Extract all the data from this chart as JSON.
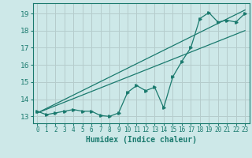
{
  "x_data": [
    0,
    1,
    2,
    3,
    4,
    5,
    6,
    7,
    8,
    9,
    10,
    11,
    12,
    13,
    14,
    15,
    16,
    17,
    18,
    19,
    20,
    21,
    22,
    23
  ],
  "y_data": [
    13.3,
    13.1,
    13.2,
    13.3,
    13.4,
    13.3,
    13.3,
    13.05,
    13.0,
    13.2,
    14.4,
    14.8,
    14.5,
    14.7,
    13.5,
    15.3,
    16.2,
    17.0,
    18.7,
    19.05,
    18.5,
    18.6,
    18.5,
    19.0
  ],
  "line1_x": [
    0,
    23
  ],
  "line1_y": [
    13.2,
    19.2
  ],
  "line2_x": [
    0,
    23
  ],
  "line2_y": [
    13.2,
    18.0
  ],
  "bg_color": "#cde8e8",
  "line_color": "#1a7a6e",
  "grid_color": "#b5cccc",
  "xlabel": "Humidex (Indice chaleur)",
  "ylim": [
    12.6,
    19.6
  ],
  "xlim": [
    -0.5,
    23.5
  ],
  "yticks": [
    13,
    14,
    15,
    16,
    17,
    18,
    19
  ],
  "xtick_labels": [
    "0",
    "1",
    "2",
    "3",
    "4",
    "5",
    "6",
    "7",
    "8",
    "9",
    "10",
    "11",
    "12",
    "13",
    "14",
    "15",
    "16",
    "17",
    "18",
    "19",
    "20",
    "21",
    "22",
    "23"
  ]
}
